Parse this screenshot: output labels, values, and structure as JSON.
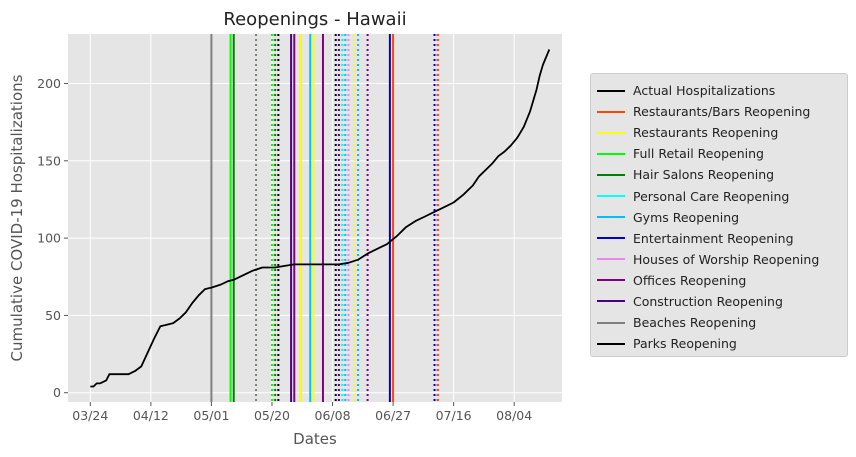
{
  "chart_data": {
    "type": "line",
    "title": "Reopenings - Hawaii",
    "xlabel": "Dates",
    "ylabel": "Cumulative COVID-19 Hospitalizations",
    "x_tick_labels": [
      "03/24",
      "04/12",
      "05/01",
      "05/20",
      "06/08",
      "06/27",
      "07/16",
      "08/04"
    ],
    "x_tick_dates": [
      "2020-03-24",
      "2020-04-12",
      "2020-05-01",
      "2020-05-20",
      "2020-06-08",
      "2020-06-27",
      "2020-07-16",
      "2020-08-04"
    ],
    "xlim": [
      "2020-03-17",
      "2020-08-19"
    ],
    "y_ticks": [
      0,
      50,
      100,
      150,
      200
    ],
    "ylim": [
      -6,
      232
    ],
    "grid": true,
    "legend_position": "right, outside plot",
    "series": [
      {
        "name": "Actual Hospitalizations",
        "color": "#000000",
        "points": [
          [
            "2020-03-24",
            4
          ],
          [
            "2020-03-25",
            4
          ],
          [
            "2020-03-26",
            6
          ],
          [
            "2020-03-27",
            6
          ],
          [
            "2020-03-28",
            7
          ],
          [
            "2020-03-29",
            8
          ],
          [
            "2020-03-30",
            12
          ],
          [
            "2020-03-31",
            12
          ],
          [
            "2020-04-01",
            12
          ],
          [
            "2020-04-03",
            12
          ],
          [
            "2020-04-05",
            12
          ],
          [
            "2020-04-07",
            14
          ],
          [
            "2020-04-09",
            17
          ],
          [
            "2020-04-11",
            26
          ],
          [
            "2020-04-13",
            35
          ],
          [
            "2020-04-15",
            43
          ],
          [
            "2020-04-17",
            44
          ],
          [
            "2020-04-19",
            45
          ],
          [
            "2020-04-21",
            48
          ],
          [
            "2020-04-23",
            52
          ],
          [
            "2020-04-25",
            58
          ],
          [
            "2020-04-27",
            63
          ],
          [
            "2020-04-29",
            67
          ],
          [
            "2020-05-01",
            68
          ],
          [
            "2020-05-04",
            70
          ],
          [
            "2020-05-06",
            72
          ],
          [
            "2020-05-08",
            73
          ],
          [
            "2020-05-11",
            76
          ],
          [
            "2020-05-14",
            79
          ],
          [
            "2020-05-17",
            81
          ],
          [
            "2020-05-21",
            81
          ],
          [
            "2020-05-24",
            82
          ],
          [
            "2020-05-27",
            83
          ],
          [
            "2020-05-31",
            83
          ],
          [
            "2020-06-05",
            83
          ],
          [
            "2020-06-10",
            83
          ],
          [
            "2020-06-13",
            84
          ],
          [
            "2020-06-16",
            86
          ],
          [
            "2020-06-19",
            90
          ],
          [
            "2020-06-22",
            93
          ],
          [
            "2020-06-25",
            96
          ],
          [
            "2020-06-28",
            101
          ],
          [
            "2020-07-01",
            107
          ],
          [
            "2020-07-04",
            111
          ],
          [
            "2020-07-07",
            114
          ],
          [
            "2020-07-10",
            117
          ],
          [
            "2020-07-13",
            120
          ],
          [
            "2020-07-16",
            123
          ],
          [
            "2020-07-19",
            128
          ],
          [
            "2020-07-22",
            134
          ],
          [
            "2020-07-24",
            140
          ],
          [
            "2020-07-26",
            144
          ],
          [
            "2020-07-28",
            148
          ],
          [
            "2020-07-30",
            153
          ],
          [
            "2020-08-01",
            156
          ],
          [
            "2020-08-03",
            160
          ],
          [
            "2020-08-05",
            165
          ],
          [
            "2020-08-07",
            172
          ],
          [
            "2020-08-09",
            182
          ],
          [
            "2020-08-11",
            196
          ],
          [
            "2020-08-12",
            205
          ],
          [
            "2020-08-13",
            212
          ],
          [
            "2020-08-15",
            222
          ]
        ]
      }
    ],
    "reopening_lines": [
      {
        "category": "Beaches Reopening",
        "date": "2020-05-01",
        "color": "#808080",
        "style": "solid"
      },
      {
        "category": "Full Retail Reopening",
        "date": "2020-05-07",
        "color": "#00ff00",
        "style": "solid"
      },
      {
        "category": "Hair Salons Reopening",
        "date": "2020-05-08",
        "color": "#008000",
        "style": "solid"
      },
      {
        "category": "Beaches Reopening",
        "date": "2020-05-15",
        "color": "#808080",
        "style": "dotted"
      },
      {
        "category": "Full Retail Reopening",
        "date": "2020-05-20",
        "color": "#00ff00",
        "style": "dotted"
      },
      {
        "category": "Hair Salons Reopening",
        "date": "2020-05-21",
        "color": "#008000",
        "style": "dotted"
      },
      {
        "category": "Parks Reopening",
        "date": "2020-05-22",
        "color": "#000000",
        "style": "dotted"
      },
      {
        "category": "Construction Reopening",
        "date": "2020-05-26",
        "color": "#4b0082",
        "style": "solid"
      },
      {
        "category": "Offices Reopening",
        "date": "2020-05-27",
        "color": "#800080",
        "style": "solid"
      },
      {
        "category": "Personal Care Reopening",
        "date": "2020-05-29",
        "color": "#00ffff",
        "style": "solid"
      },
      {
        "category": "Restaurants Reopening",
        "date": "2020-05-29",
        "color": "#ffff00",
        "style": "solid"
      },
      {
        "category": "Gyms Reopening",
        "date": "2020-06-01",
        "color": "#00bfff",
        "style": "solid"
      },
      {
        "category": "Restaurants Reopening",
        "date": "2020-06-02",
        "color": "#ffff00",
        "style": "solid"
      },
      {
        "category": "Offices Reopening",
        "date": "2020-06-05",
        "color": "#800080",
        "style": "solid"
      },
      {
        "category": "Parks Reopening",
        "date": "2020-06-09",
        "color": "#000000",
        "style": "dotted"
      },
      {
        "category": "Construction Reopening",
        "date": "2020-06-10",
        "color": "#4b0082",
        "style": "dotted"
      },
      {
        "category": "Personal Care Reopening",
        "date": "2020-06-11",
        "color": "#00ffff",
        "style": "dotted"
      },
      {
        "category": "Gyms Reopening",
        "date": "2020-06-12",
        "color": "#00bfff",
        "style": "dotted"
      },
      {
        "category": "Houses of Worship Reopening",
        "date": "2020-06-13",
        "color": "#ee82ee",
        "style": "dotted"
      },
      {
        "category": "Restaurants Reopening",
        "date": "2020-06-15",
        "color": "#ffff00",
        "style": "dotted"
      },
      {
        "category": "Gyms Reopening",
        "date": "2020-06-16",
        "color": "#00bfff",
        "style": "dotted"
      },
      {
        "category": "Offices Reopening",
        "date": "2020-06-19",
        "color": "#800080",
        "style": "dotted"
      },
      {
        "category": "Entertainment Reopening",
        "date": "2020-06-26",
        "color": "#0000cd",
        "style": "solid"
      },
      {
        "category": "Restaurants/Bars Reopening",
        "date": "2020-06-27",
        "color": "#ff4500",
        "style": "solid"
      },
      {
        "category": "Entertainment Reopening",
        "date": "2020-07-10",
        "color": "#0000cd",
        "style": "dotted"
      },
      {
        "category": "Offices Reopening",
        "date": "2020-07-11",
        "color": "#800080",
        "style": "dotted"
      },
      {
        "category": "Restaurants/Bars Reopening",
        "date": "2020-07-11",
        "color": "#ff4500",
        "style": "dotted"
      }
    ],
    "legend": [
      {
        "label": "Actual Hospitalizations",
        "color": "#000000"
      },
      {
        "label": "Restaurants/Bars Reopening",
        "color": "#ff4500"
      },
      {
        "label": "Restaurants Reopening",
        "color": "#ffff00"
      },
      {
        "label": "Full Retail Reopening",
        "color": "#00ff00"
      },
      {
        "label": "Hair Salons Reopening",
        "color": "#008000"
      },
      {
        "label": "Personal Care Reopening",
        "color": "#00ffff"
      },
      {
        "label": "Gyms Reopening",
        "color": "#00bfff"
      },
      {
        "label": "Entertainment Reopening",
        "color": "#0000cd"
      },
      {
        "label": "Houses of Worship Reopening",
        "color": "#ee82ee"
      },
      {
        "label": "Offices Reopening",
        "color": "#800080"
      },
      {
        "label": "Construction Reopening",
        "color": "#4b0082"
      },
      {
        "label": "Beaches Reopening",
        "color": "#808080"
      },
      {
        "label": "Parks Reopening",
        "color": "#000000"
      }
    ]
  }
}
